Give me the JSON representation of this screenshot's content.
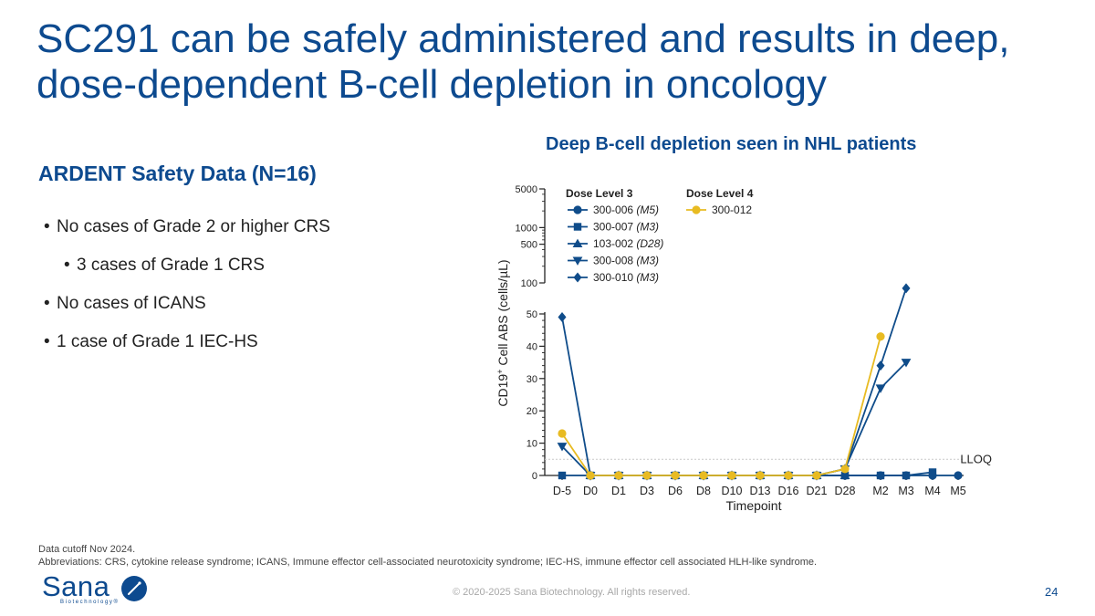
{
  "slide": {
    "title": "SC291 can be safely administered and results in deep, dose-dependent B-cell depletion in oncology",
    "subheading": "ARDENT Safety Data (N=16)",
    "bullets": [
      "No cases of Grade 2 or higher CRS",
      "3 cases of Grade 1 CRS",
      "No cases of ICANS",
      "1 case of Grade 1 IEC-HS"
    ],
    "footnote_1": "Data cutoff Nov 2024.",
    "footnote_2": "Abbreviations: CRS, cytokine release syndrome; ICANS, Immune effector cell-associated neurotoxicity syndrome; IEC-HS, immune effector cell associated HLH-like syndrome.",
    "copyright": "© 2020-2025 Sana Biotechnology. All rights reserved.",
    "page_number": "24",
    "logo_text": "Sana",
    "logo_subtext": "Biotechnology®"
  },
  "colors": {
    "brand_blue": "#0d4a8f",
    "series_blue": "#0f4c8a",
    "series_yellow": "#e8bb22"
  },
  "chart_data": {
    "type": "line",
    "title": "Deep B-cell depletion seen in NHL patients",
    "xlabel": "Timepoint",
    "ylabel": "CD19",
    "ylabel_sup": "+",
    "ylabel_rest": " Cell ABS (cells/µL)",
    "categories": [
      "D-5",
      "D0",
      "D1",
      "D3",
      "D6",
      "D8",
      "D10",
      "D13",
      "D16",
      "D21",
      "D28",
      "M2",
      "M3",
      "M4",
      "M5"
    ],
    "y_axis_broken": true,
    "y_lower": {
      "range": [
        0,
        50
      ],
      "ticks": [
        0,
        10,
        20,
        30,
        40,
        50
      ]
    },
    "y_upper": {
      "scale": "log",
      "range": [
        100,
        5000
      ],
      "tick_labels": [
        "100",
        "500",
        "1000",
        "5000"
      ]
    },
    "reference_line": {
      "label": "LLOQ",
      "value": 5
    },
    "legend_groups": [
      "Dose Level 3",
      "Dose Level 4"
    ],
    "series": [
      {
        "name": "300-006",
        "visit": "M5",
        "group": "Dose Level 3",
        "color": "#0f4c8a",
        "marker": "circle",
        "values": [
          null,
          0,
          0,
          0,
          0,
          0,
          0,
          0,
          0,
          0,
          0,
          0,
          0,
          0,
          0
        ]
      },
      {
        "name": "300-007",
        "visit": "M3",
        "group": "Dose Level 3",
        "color": "#0f4c8a",
        "marker": "square",
        "values": [
          0,
          0,
          0,
          0,
          0,
          0,
          0,
          0,
          0,
          0,
          0,
          0,
          0,
          1,
          null
        ]
      },
      {
        "name": "103-002",
        "visit": "D28",
        "group": "Dose Level 3",
        "color": "#0f4c8a",
        "marker": "triangle-up",
        "values": [
          null,
          0,
          0,
          0,
          0,
          0,
          0,
          0,
          0,
          0,
          0,
          null,
          null,
          null,
          null
        ]
      },
      {
        "name": "300-008",
        "visit": "M3",
        "group": "Dose Level 3",
        "color": "#0f4c8a",
        "marker": "triangle-down",
        "values": [
          9,
          0,
          0,
          0,
          0,
          0,
          0,
          0,
          0,
          0,
          2,
          27,
          35,
          null,
          null
        ]
      },
      {
        "name": "300-010",
        "visit": "M3",
        "group": "Dose Level 3",
        "color": "#0f4c8a",
        "marker": "diamond",
        "values": [
          49,
          0,
          0,
          0,
          0,
          0,
          0,
          0,
          0,
          0,
          2,
          34,
          80,
          null,
          null
        ]
      },
      {
        "name": "300-012",
        "visit": "",
        "group": "Dose Level 4",
        "color": "#e8bb22",
        "marker": "circle",
        "values": [
          13,
          0,
          0,
          0,
          0,
          0,
          0,
          0,
          0,
          0,
          2,
          43,
          null,
          null,
          null
        ]
      }
    ]
  }
}
